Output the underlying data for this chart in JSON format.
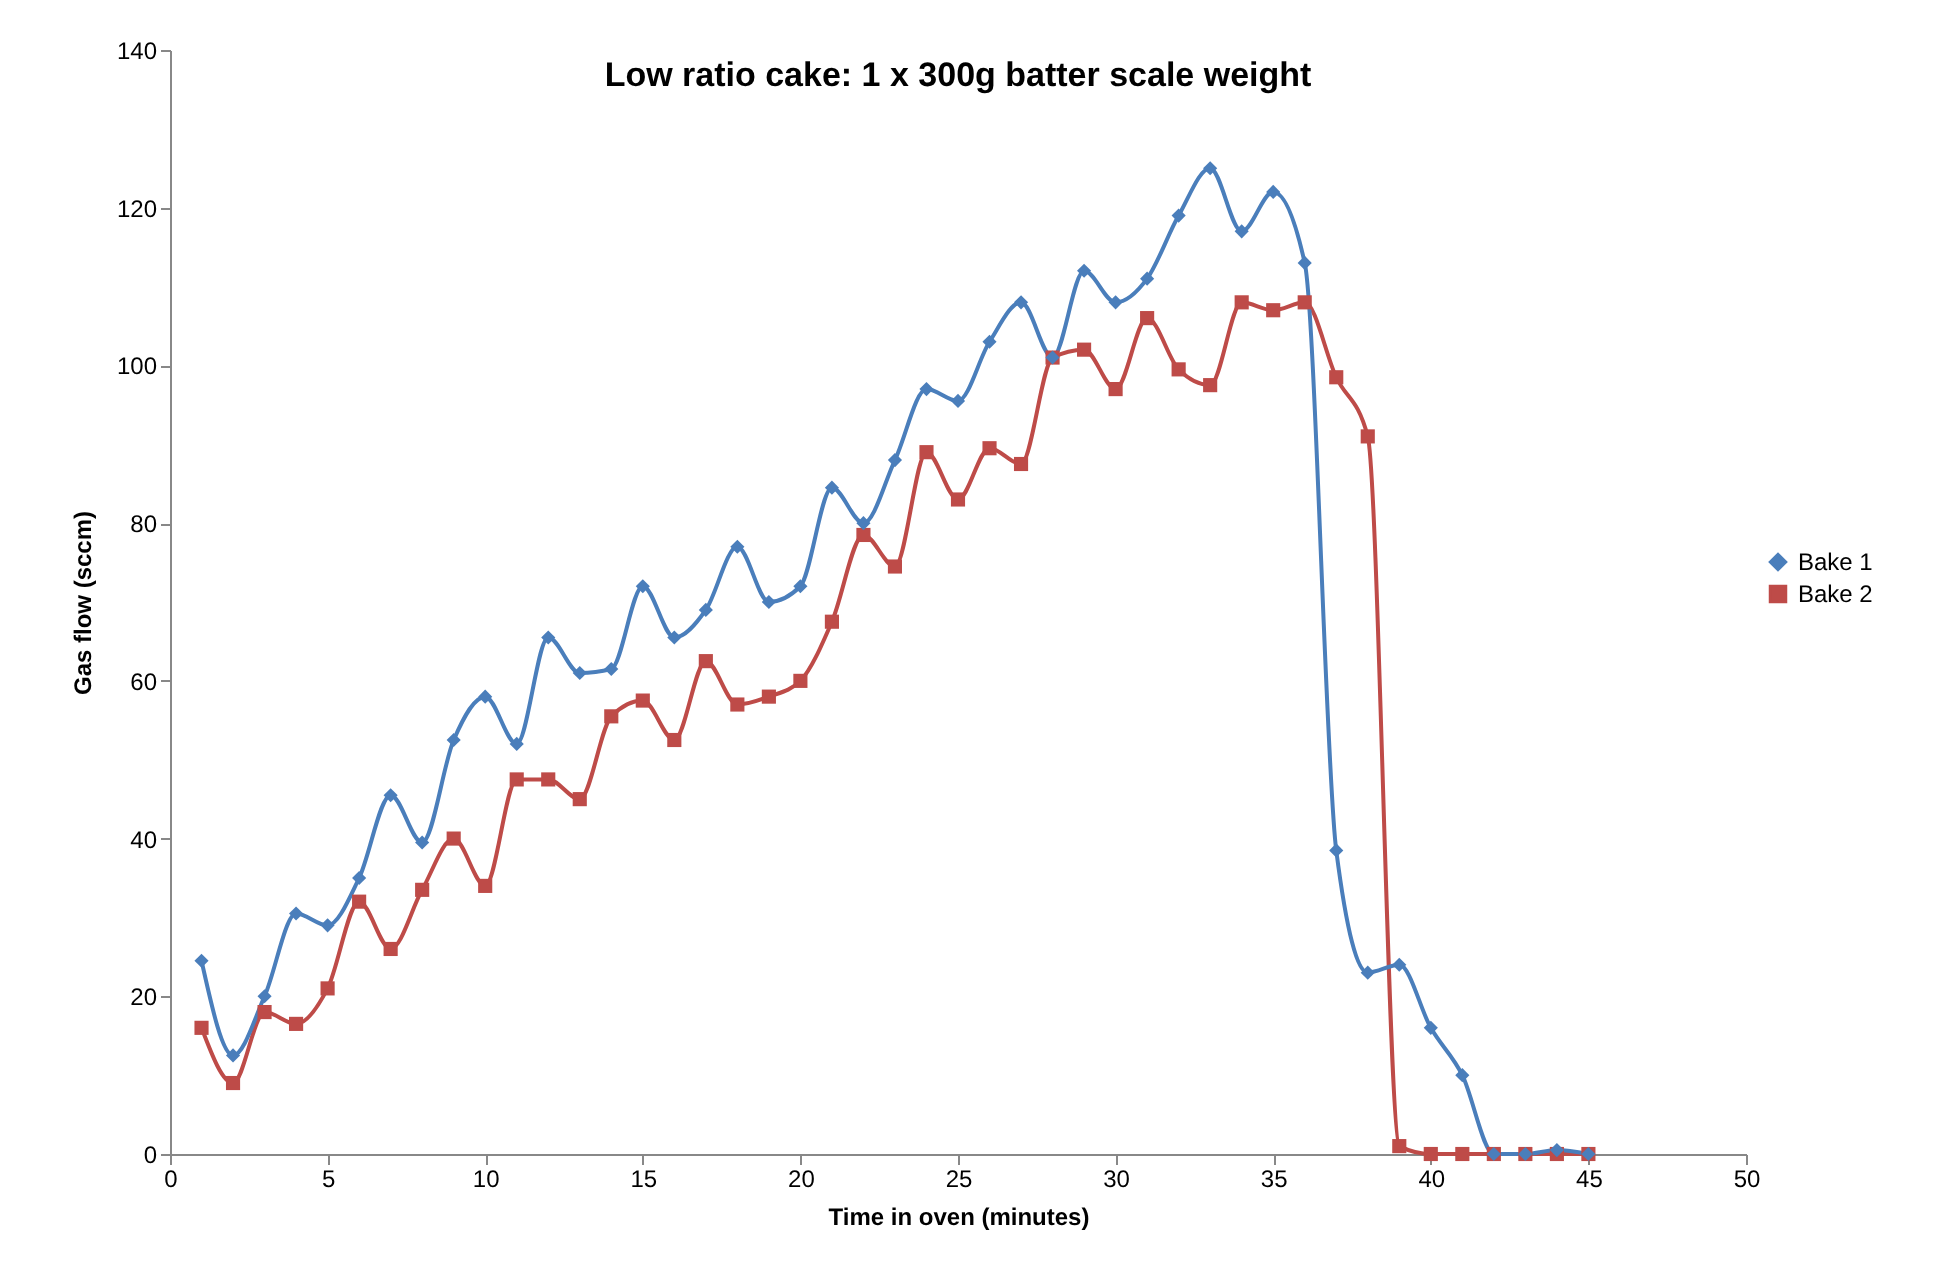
{
  "chart_data": {
    "type": "line",
    "title": "Low ratio cake: 1 x 300g batter scale weight",
    "xlabel": "Time in oven (minutes)",
    "ylabel": "Gas flow (sccm)",
    "x": [
      1,
      2,
      3,
      4,
      5,
      6,
      7,
      8,
      9,
      10,
      11,
      12,
      13,
      14,
      15,
      16,
      17,
      18,
      19,
      20,
      21,
      22,
      23,
      24,
      25,
      26,
      27,
      28,
      29,
      30,
      31,
      32,
      33,
      34,
      35,
      36,
      37,
      38,
      39,
      40,
      41,
      42,
      43,
      44,
      45
    ],
    "series": [
      {
        "name": "Bake 1",
        "color": "#4a7ebb",
        "marker": "diamond",
        "values": [
          24.5,
          12.5,
          20,
          30.5,
          29,
          35,
          45.5,
          39.5,
          52.5,
          58,
          52,
          65.5,
          61,
          61.5,
          72,
          65.5,
          69,
          77,
          70,
          72,
          84.5,
          80,
          88,
          97,
          95.5,
          103,
          108,
          101,
          112,
          108,
          111,
          119,
          125,
          117,
          122,
          113,
          38.5,
          23,
          24,
          16,
          10,
          0,
          0,
          0.5,
          0
        ]
      },
      {
        "name": "Bake 2",
        "color": "#be4b48",
        "marker": "square",
        "values": [
          16,
          9,
          18,
          16.5,
          21,
          32,
          26,
          33.5,
          40,
          34,
          47.5,
          47.5,
          45,
          55.5,
          57.5,
          52.5,
          62.5,
          57,
          58,
          60,
          67.5,
          78.5,
          74.5,
          89,
          83,
          89.5,
          87.5,
          101,
          102,
          97,
          106,
          99.5,
          97.5,
          108,
          107,
          108,
          98.5,
          91,
          1,
          0,
          0,
          0,
          0,
          0,
          0
        ]
      }
    ],
    "xlim": [
      0,
      50
    ],
    "xticks": [
      0,
      5,
      10,
      15,
      20,
      25,
      30,
      35,
      40,
      45,
      50
    ],
    "ylim": [
      0,
      140
    ],
    "yticks": [
      0,
      20,
      40,
      60,
      80,
      100,
      120,
      140
    ],
    "grid": false,
    "legend": "right",
    "line_style": "solid"
  }
}
